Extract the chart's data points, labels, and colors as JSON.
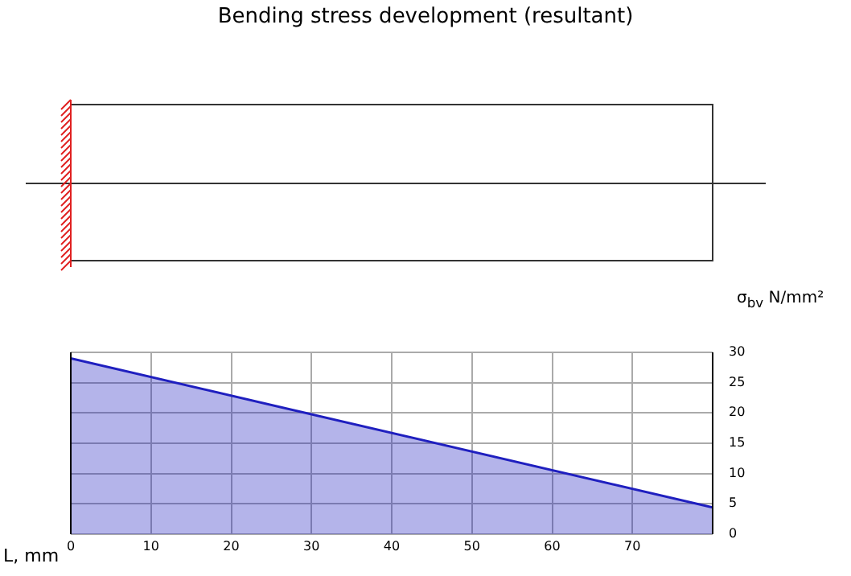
{
  "chart_data": {
    "type": "area",
    "title": "Bending stress development (resultant)",
    "xlabel": "L, mm",
    "ylabel": "σ$_{bv}$   N/mm²",
    "x": [
      0,
      80
    ],
    "series": [
      {
        "color": "#1f1fbf",
        "values": [
          29,
          4.4
        ]
      }
    ],
    "xlim": [
      0,
      80
    ],
    "xticks": [
      0,
      10,
      20,
      30,
      40,
      50,
      60,
      70
    ],
    "ylim": [
      0,
      30
    ],
    "yticks": [
      0,
      5,
      10,
      15,
      20,
      25,
      30
    ],
    "grid": true
  }
}
